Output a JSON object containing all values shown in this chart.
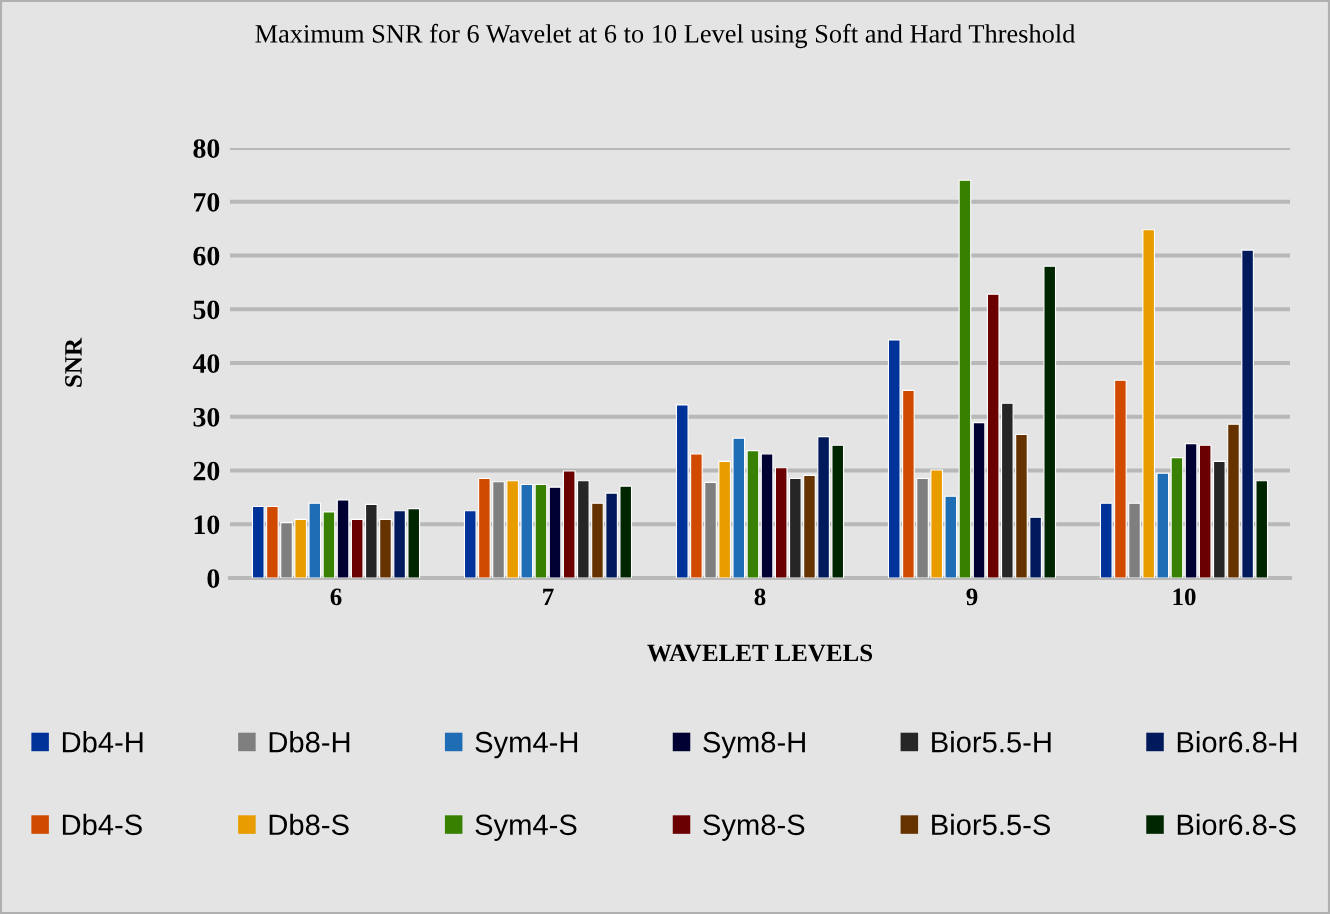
{
  "chart_data": {
    "type": "bar",
    "title": "Maximum SNR for 6 Wavelet at 6 to 10 Level using Soft and Hard Threshold",
    "xlabel": "WAVELET LEVELS",
    "ylabel": "SNR",
    "categories": [
      "6",
      "7",
      "8",
      "9",
      "10"
    ],
    "series": [
      {
        "name": "Db4-H",
        "color": "#003399",
        "values": [
          13.3,
          12.5,
          32.2,
          44.3,
          13.9
        ]
      },
      {
        "name": "Db4-S",
        "color": "#d04a02",
        "values": [
          13.3,
          18.5,
          23.1,
          34.9,
          36.8
        ]
      },
      {
        "name": "Db8-H",
        "color": "#7f7f7f",
        "values": [
          10.3,
          17.9,
          17.8,
          18.5,
          13.9
        ]
      },
      {
        "name": "Db8-S",
        "color": "#e89c00",
        "values": [
          10.9,
          18.1,
          21.7,
          20.1,
          64.8
        ]
      },
      {
        "name": "Sym4-H",
        "color": "#1f6eb5",
        "values": [
          13.9,
          17.4,
          26.0,
          15.2,
          19.5
        ]
      },
      {
        "name": "Sym4-S",
        "color": "#378000",
        "values": [
          12.3,
          17.4,
          23.7,
          74.0,
          22.4
        ]
      },
      {
        "name": "Sym8-H",
        "color": "#000033",
        "values": [
          14.5,
          16.9,
          23.1,
          28.9,
          25.0
        ]
      },
      {
        "name": "Sym8-S",
        "color": "#6b0000",
        "values": [
          10.9,
          19.9,
          20.5,
          52.8,
          24.7
        ]
      },
      {
        "name": "Bior5.5-H",
        "color": "#262626",
        "values": [
          13.7,
          18.1,
          18.5,
          32.5,
          21.7
        ]
      },
      {
        "name": "Bior5.5-S",
        "color": "#663300",
        "values": [
          10.9,
          13.9,
          19.1,
          26.7,
          28.6
        ]
      },
      {
        "name": "Bior6.8-H",
        "color": "#001a5c",
        "values": [
          12.5,
          15.8,
          26.3,
          11.3,
          61.0
        ]
      },
      {
        "name": "Bior6.8-S",
        "color": "#002600",
        "values": [
          12.9,
          17.1,
          24.7,
          58.0,
          18.1
        ]
      }
    ],
    "ylim": [
      0,
      80
    ],
    "yticks": [
      0,
      10,
      20,
      30,
      40,
      50,
      60,
      70,
      80
    ],
    "grid": "y",
    "legend": "bottom"
  }
}
